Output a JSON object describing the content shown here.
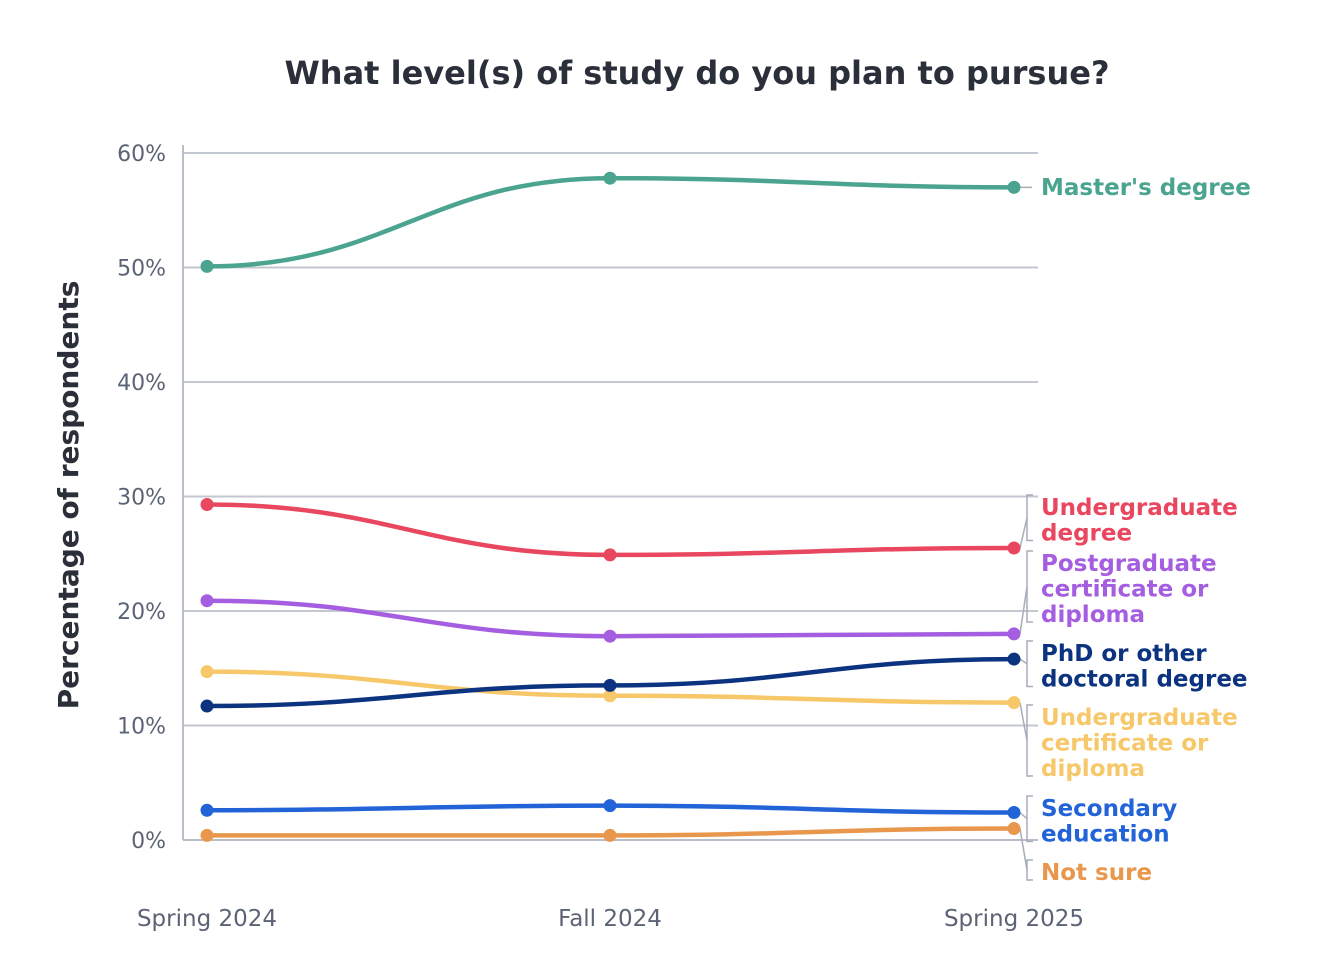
{
  "chart_data": {
    "type": "line",
    "title": "What level(s) of study do you plan to pursue?",
    "xlabel": "",
    "ylabel": "Percentage of respondents",
    "x": [
      "Spring 2024",
      "Fall 2024",
      "Spring 2025"
    ],
    "ylim": [
      0,
      60
    ],
    "yticks": [
      "0%",
      "10%",
      "20%",
      "30%",
      "40%",
      "50%",
      "60%"
    ],
    "grid": true,
    "legend": "direct labels at right end of lines",
    "series": [
      {
        "name": "Master's degree",
        "label_lines": [
          "Master's degree"
        ],
        "color": "#4aa48f",
        "values": [
          50.1,
          57.8,
          57.0
        ]
      },
      {
        "name": "Undergraduate degree",
        "label_lines": [
          "Undergraduate",
          "degree"
        ],
        "color": "#e8475f",
        "values": [
          29.3,
          24.9,
          25.5
        ]
      },
      {
        "name": "Postgraduate certificate or diploma",
        "label_lines": [
          "Postgraduate",
          "certificate or",
          "diploma"
        ],
        "color": "#a55ee0",
        "values": [
          20.9,
          17.8,
          18.0
        ]
      },
      {
        "name": "PhD or other doctoral degree",
        "label_lines": [
          "PhD or other",
          "doctoral degree"
        ],
        "color": "#0c3380",
        "values": [
          11.7,
          13.5,
          15.8
        ]
      },
      {
        "name": "Undergraduate certificate or diploma",
        "label_lines": [
          "Undergraduate",
          "certificate or",
          "diploma"
        ],
        "color": "#f7c86a",
        "values": [
          14.7,
          12.6,
          12.0
        ]
      },
      {
        "name": "Secondary education",
        "label_lines": [
          "Secondary",
          "education"
        ],
        "color": "#2263d8",
        "values": [
          2.6,
          3.0,
          2.4
        ]
      },
      {
        "name": "Not sure",
        "label_lines": [
          "Not sure"
        ],
        "color": "#e8974c",
        "values": [
          0.4,
          0.4,
          1.0
        ]
      }
    ]
  }
}
